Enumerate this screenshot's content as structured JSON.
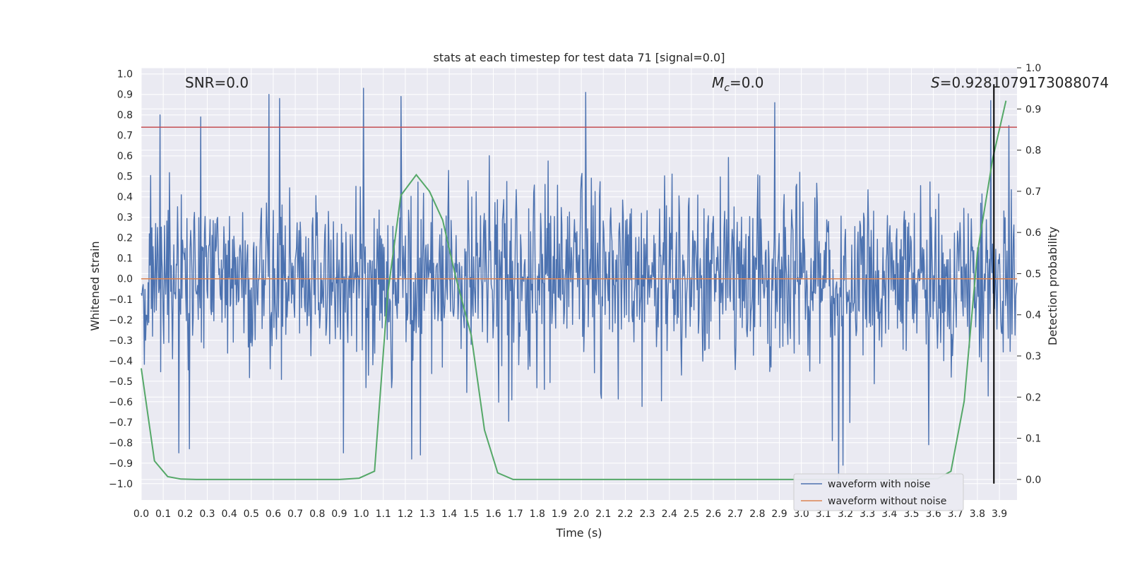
{
  "chart_data": {
    "type": "line",
    "title": "stats at each timestep for test data 71 [signal=0.0]",
    "xlabel": "Time (s)",
    "ylabel": "Whitened strain",
    "ylabel_right": "Detection probability",
    "xlim": [
      0.0,
      3.98
    ],
    "ylim": [
      -1.08,
      1.03
    ],
    "ylim_right": [
      -0.05,
      1.0
    ],
    "x_ticks": [
      0.0,
      0.1,
      0.2,
      0.3,
      0.4,
      0.5,
      0.6,
      0.7,
      0.8,
      0.9,
      1.0,
      1.1,
      1.2,
      1.3,
      1.4,
      1.5,
      1.6,
      1.7,
      1.8,
      1.9,
      2.0,
      2.1,
      2.2,
      2.3,
      2.4,
      2.5,
      2.6,
      2.7,
      2.8,
      2.9,
      3.0,
      3.1,
      3.2,
      3.3,
      3.4,
      3.5,
      3.6,
      3.7,
      3.8,
      3.9
    ],
    "x_tick_labels": [
      "0.0",
      "0.1",
      "0.2",
      "0.3",
      "0.4",
      "0.5",
      "0.6",
      "0.7",
      "0.8",
      "0.9",
      "1.0",
      "1.1",
      "1.2",
      "1.3",
      "1.4",
      "1.5",
      "1.6",
      "1.7",
      "1.8",
      "1.9",
      "2.0",
      "2.1",
      "2.2",
      "2.3",
      "2.4",
      "2.5",
      "2.6",
      "2.7",
      "2.8",
      "2.9",
      "3.0",
      "3.1",
      "3.2",
      "3.3",
      "3.4",
      "3.5",
      "3.6",
      "3.7",
      "3.8",
      "3.9"
    ],
    "y_ticks": [
      1.0,
      0.9,
      0.8,
      0.7,
      0.6,
      0.5,
      0.4,
      0.3,
      0.2,
      0.1,
      0.0,
      -0.1,
      -0.2,
      -0.3,
      -0.4,
      -0.5,
      -0.6,
      -0.7,
      -0.8,
      -0.9,
      -1.0
    ],
    "y_tick_labels": [
      "1.0",
      "0.9",
      "0.8",
      "0.7",
      "0.6",
      "0.5",
      "0.4",
      "0.3",
      "0.2",
      "0.1",
      "0.0",
      "−0.1",
      "−0.2",
      "−0.3",
      "−0.4",
      "−0.5",
      "−0.6",
      "−0.7",
      "−0.8",
      "−0.9",
      "−1.0"
    ],
    "y_right_ticks": [
      1.0,
      0.9,
      0.8,
      0.7,
      0.6,
      0.5,
      0.4,
      0.3,
      0.2,
      0.1,
      0.0
    ],
    "y_right_tick_labels": [
      "1.0",
      "0.9",
      "0.8",
      "0.7",
      "0.6",
      "0.5",
      "0.4",
      "0.3",
      "0.2",
      "0.1",
      "0.0"
    ],
    "grid": true,
    "legend_position": "bottom-right",
    "series": [
      {
        "name": "waveform with noise",
        "color": "#4c72b0",
        "kind": "noise",
        "n_points": 1400,
        "seed": 71,
        "amplitude_std": 0.22,
        "peaks": [
          {
            "x": 0.085,
            "y": 0.8
          },
          {
            "x": 0.27,
            "y": 0.79
          },
          {
            "x": 0.58,
            "y": 0.9
          },
          {
            "x": 0.63,
            "y": 0.88
          },
          {
            "x": 1.01,
            "y": 0.93
          },
          {
            "x": 1.18,
            "y": 0.89
          },
          {
            "x": 2.02,
            "y": 0.91
          },
          {
            "x": 2.88,
            "y": 0.86
          },
          {
            "x": 3.86,
            "y": 0.87
          },
          {
            "x": 0.17,
            "y": -0.85
          },
          {
            "x": 0.22,
            "y": -0.83
          },
          {
            "x": 1.23,
            "y": -0.88
          },
          {
            "x": 1.27,
            "y": -0.86
          },
          {
            "x": 0.92,
            "y": -0.85
          },
          {
            "x": 3.14,
            "y": -0.79
          },
          {
            "x": 3.17,
            "y": -0.98
          },
          {
            "x": 3.19,
            "y": -0.91
          },
          {
            "x": 3.58,
            "y": -0.81
          }
        ]
      },
      {
        "name": "waveform without noise",
        "color": "#dd8452",
        "kind": "flat",
        "y": 0.0
      },
      {
        "name": "detection probability",
        "color": "#55a868",
        "axis": "right",
        "x": [
          0.0,
          0.06,
          0.12,
          0.18,
          0.25,
          0.35,
          0.5,
          0.7,
          0.9,
          0.99,
          1.06,
          1.12,
          1.18,
          1.25,
          1.31,
          1.37,
          1.43,
          1.5,
          1.56,
          1.62,
          1.69,
          1.8,
          2.0,
          2.5,
          3.0,
          3.4,
          3.62,
          3.68,
          3.74,
          3.8,
          3.87,
          3.93
        ],
        "y": [
          0.27,
          0.045,
          0.007,
          0.001,
          0.0,
          0.0,
          0.0,
          0.0,
          0.0,
          0.003,
          0.02,
          0.45,
          0.69,
          0.74,
          0.7,
          0.63,
          0.49,
          0.35,
          0.12,
          0.016,
          0.0,
          0.0,
          0.0,
          0.0,
          0.0,
          0.0,
          0.002,
          0.02,
          0.19,
          0.55,
          0.78,
          0.92
        ]
      }
    ],
    "horizontal_lines": [
      {
        "y": 0.74,
        "color": "#c44e52",
        "axis": "left"
      }
    ],
    "vertical_lines": [
      {
        "x": 3.875,
        "y_from": -1.0,
        "y_to": 0.95,
        "color": "#000000"
      }
    ],
    "annotations": {
      "snr": "SNR=0.0",
      "mc_symbol": "M",
      "mc_subscript": "c",
      "mc_value": "=0.0",
      "s_symbol": "S",
      "s_value": "=0.9281079173088074"
    },
    "legend": [
      "waveform with noise",
      "waveform without noise"
    ]
  }
}
